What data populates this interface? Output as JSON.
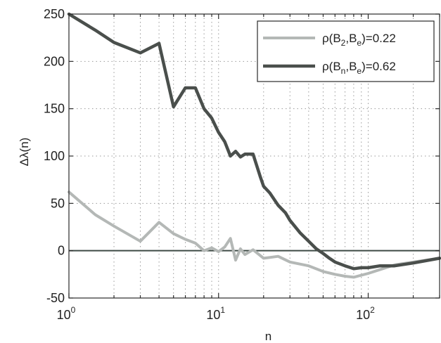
{
  "chart_data": {
    "type": "line",
    "title": "",
    "xlabel": "n",
    "ylabel": "Δλ(n)",
    "xscale": "log",
    "xlim": [
      1,
      300
    ],
    "ylim": [
      -50,
      250
    ],
    "grid": true,
    "grid_style": "dotted",
    "legend_placement": "top-right",
    "x_ticks": [
      {
        "base": "10",
        "exp": "0",
        "value": 1
      },
      {
        "base": "10",
        "exp": "1",
        "value": 10
      },
      {
        "base": "10",
        "exp": "2",
        "value": 100
      }
    ],
    "y_ticks": [
      "-50",
      "0",
      "50",
      "100",
      "150",
      "200",
      "250"
    ],
    "reference_lines": [
      {
        "y": 0,
        "color": "#3d4a44"
      }
    ],
    "series": [
      {
        "label_parts": [
          "ρ(B",
          "2",
          ",B",
          "e",
          ")=0.22"
        ],
        "color": "#b4b8b6",
        "x": [
          1,
          1.5,
          2,
          3,
          4,
          5,
          6,
          7,
          8,
          9,
          10,
          11,
          12,
          13,
          14,
          15,
          17,
          20,
          25,
          30,
          40,
          50,
          60,
          70,
          80,
          100,
          150,
          200,
          300
        ],
        "y": [
          62,
          38,
          26,
          10,
          30,
          18,
          12,
          8,
          0,
          3,
          -1,
          4,
          13,
          -10,
          2,
          -4,
          1,
          -8,
          -6,
          -12,
          -16,
          -22,
          -25,
          -27,
          -28,
          -24,
          -15,
          -12,
          -8
        ]
      },
      {
        "label_parts": [
          "ρ(B",
          "n",
          ",B",
          "e",
          ")=0.62"
        ],
        "color": "#4a4f4c",
        "x": [
          1,
          1.5,
          2,
          3,
          4,
          5,
          6,
          7,
          8,
          9,
          10,
          11,
          12,
          13,
          14,
          15,
          17,
          19,
          20,
          22,
          25,
          28,
          30,
          35,
          40,
          45,
          50,
          55,
          60,
          70,
          80,
          90,
          100,
          120,
          150,
          200,
          300
        ],
        "y": [
          250,
          233,
          220,
          209,
          219,
          152,
          172,
          172,
          150,
          140,
          125,
          115,
          100,
          105,
          99,
          102,
          102,
          78,
          68,
          61,
          48,
          40,
          32,
          19,
          10,
          2,
          -3,
          -8,
          -12,
          -16,
          -19,
          -18,
          -18,
          -16,
          -16,
          -13,
          -8
        ]
      }
    ]
  }
}
